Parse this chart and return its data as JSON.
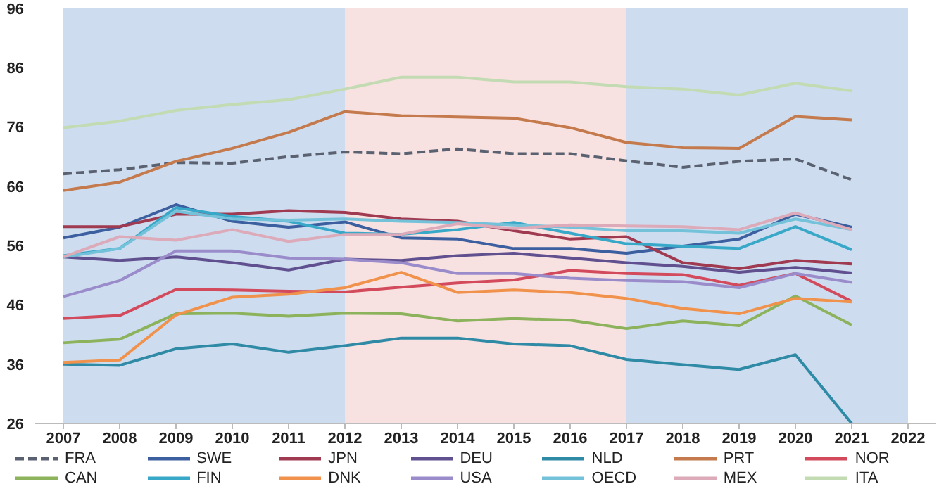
{
  "chart_data": {
    "type": "line",
    "x": [
      2007,
      2008,
      2009,
      2010,
      2011,
      2012,
      2013,
      2014,
      2015,
      2016,
      2017,
      2018,
      2019,
      2020,
      2021
    ],
    "xlim": [
      2006.5,
      2022.5
    ],
    "xticks": [
      2007,
      2008,
      2009,
      2010,
      2011,
      2012,
      2013,
      2014,
      2015,
      2016,
      2017,
      2018,
      2019,
      2020,
      2021,
      2022
    ],
    "ylim": [
      26,
      96
    ],
    "yticks": [
      26,
      36,
      46,
      56,
      66,
      76,
      86,
      96
    ],
    "grid": false,
    "legend": "bottom",
    "marker": "none",
    "bands": [
      {
        "axis": "x",
        "from": 2007,
        "to": 2012,
        "color": "#cddcee"
      },
      {
        "axis": "x",
        "from": 2012,
        "to": 2017,
        "color": "#f8e1e1"
      },
      {
        "axis": "x",
        "from": 2017,
        "to": 2022,
        "color": "#cddcee"
      }
    ],
    "series": [
      {
        "name": "FRA",
        "color": "#5a6170",
        "line_style": "dashed",
        "values": [
          68.1,
          68.8,
          70.0,
          69.9,
          71.0,
          71.8,
          71.5,
          72.3,
          71.5,
          71.5,
          70.3,
          69.2,
          70.2,
          70.6,
          67.1
        ]
      },
      {
        "name": "SWE",
        "color": "#3c5fa0",
        "values": [
          57.3,
          59.1,
          62.9,
          60.1,
          59.1,
          60.0,
          57.3,
          57.1,
          55.5,
          55.5,
          54.7,
          55.9,
          57.1,
          61.3,
          59.1
        ]
      },
      {
        "name": "JPN",
        "color": "#a03a50",
        "values": [
          59.2,
          59.2,
          61.3,
          61.3,
          61.9,
          61.6,
          60.5,
          60.1,
          58.5,
          57.1,
          57.5,
          53.1,
          52.1,
          53.5,
          52.9
        ]
      },
      {
        "name": "DEU",
        "color": "#60508f",
        "values": [
          54.1,
          53.5,
          54.1,
          53.1,
          51.9,
          53.7,
          53.5,
          54.3,
          54.7,
          53.9,
          53.1,
          52.5,
          51.5,
          52.3,
          51.4
        ]
      },
      {
        "name": "NLD",
        "color": "#2f8aa6",
        "values": [
          36.0,
          35.8,
          38.6,
          39.4,
          38.0,
          39.1,
          40.4,
          40.4,
          39.4,
          39.1,
          36.8,
          35.9,
          35.1,
          37.6,
          26
        ]
      },
      {
        "name": "PRT",
        "color": "#c47a4c",
        "values": [
          65.3,
          66.7,
          70.2,
          72.4,
          75.1,
          78.6,
          77.9,
          77.7,
          77.5,
          75.9,
          73.4,
          72.5,
          72.4,
          77.8,
          77.2
        ]
      },
      {
        "name": "NOR",
        "color": "#d24a5c",
        "values": [
          43.7,
          44.2,
          48.6,
          48.5,
          48.3,
          48.2,
          49.0,
          49.7,
          50.2,
          51.8,
          51.3,
          51.1,
          49.3,
          51.3,
          46.6
        ]
      },
      {
        "name": "CAN",
        "color": "#8cb35c",
        "values": [
          39.6,
          40.2,
          44.5,
          44.6,
          44.1,
          44.6,
          44.5,
          43.3,
          43.7,
          43.4,
          42.0,
          43.3,
          42.5,
          47.5,
          42.6
        ]
      },
      {
        "name": "FIN",
        "color": "#38a8c8",
        "values": [
          54.3,
          55.5,
          62.4,
          60.9,
          60.1,
          58.1,
          57.9,
          58.7,
          59.9,
          58.1,
          56.3,
          55.9,
          55.5,
          59.2,
          55.3
        ]
      },
      {
        "name": "DNK",
        "color": "#f0924c",
        "values": [
          36.3,
          36.7,
          44.3,
          47.3,
          47.8,
          48.9,
          51.5,
          48.1,
          48.5,
          48.1,
          47.1,
          45.4,
          44.5,
          47.1,
          46.5
        ]
      },
      {
        "name": "USA",
        "color": "#9a8ccb",
        "values": [
          47.4,
          50.1,
          55.1,
          55.1,
          53.9,
          53.7,
          53.1,
          51.3,
          51.3,
          50.5,
          50.1,
          49.9,
          48.9,
          51.3,
          49.8
        ]
      },
      {
        "name": "OECD",
        "color": "#74c2da",
        "values": [
          54.1,
          55.5,
          61.8,
          60.5,
          60.3,
          60.5,
          60.1,
          59.9,
          59.5,
          59.1,
          58.5,
          58.5,
          58.1,
          60.5,
          58.7
        ]
      },
      {
        "name": "MEX",
        "color": "#dcaab8",
        "values": [
          54.1,
          57.5,
          56.9,
          58.7,
          56.7,
          57.9,
          57.9,
          59.7,
          58.9,
          59.5,
          59.3,
          59.2,
          58.7,
          61.5,
          58.7
        ]
      },
      {
        "name": "ITA",
        "color": "#c3dbb2",
        "values": [
          75.9,
          77.0,
          78.8,
          79.8,
          80.6,
          82.4,
          84.4,
          84.4,
          83.6,
          83.6,
          82.8,
          82.4,
          81.4,
          83.4,
          82.1
        ]
      }
    ]
  }
}
